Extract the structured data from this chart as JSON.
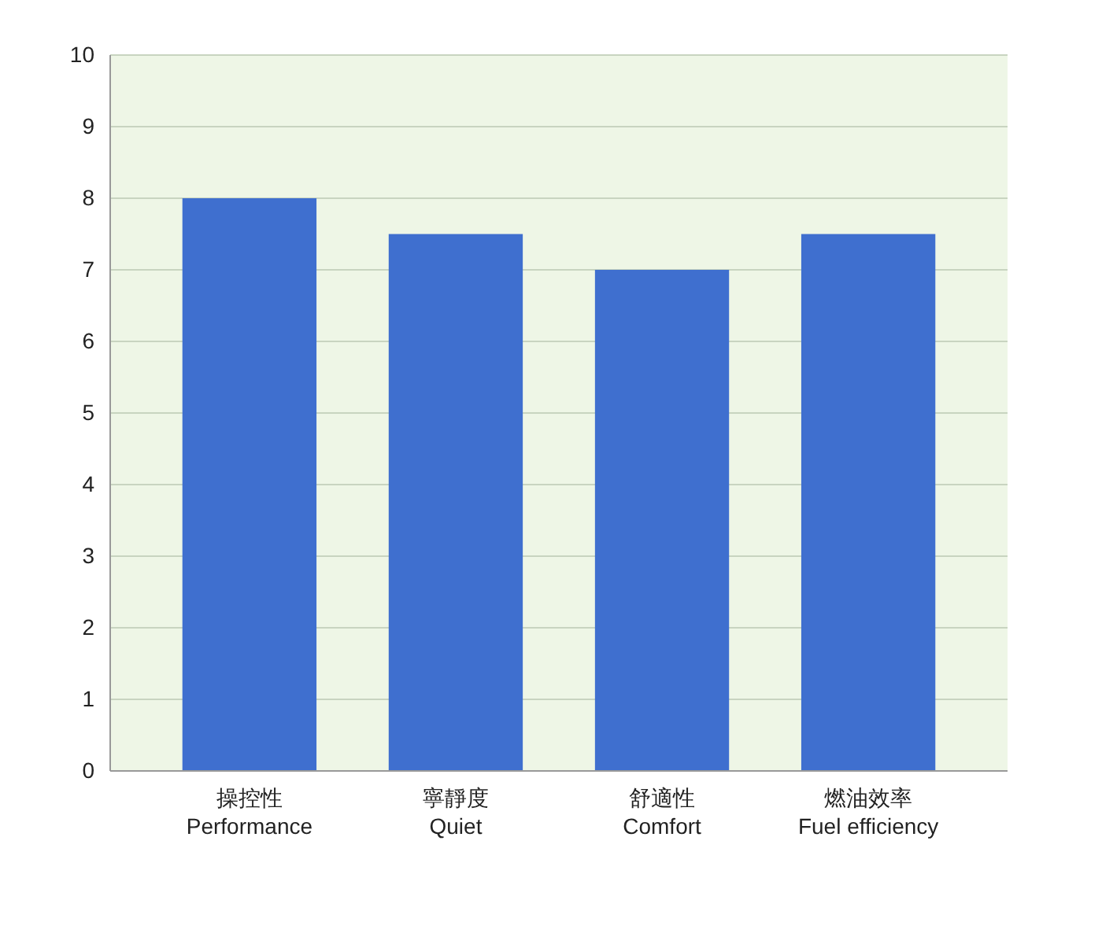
{
  "chart_data": {
    "type": "bar",
    "categories": [
      "操控性\nPerformance",
      "寧靜度\nQuiet",
      "舒適性\nComfort",
      "燃油效率\nFuel efficiency"
    ],
    "values": [
      8,
      7.5,
      7,
      7.5
    ],
    "color": "#3f6fcf",
    "ylim": [
      0,
      10
    ],
    "yticks": [
      0,
      1,
      2,
      3,
      4,
      5,
      6,
      7,
      8,
      9,
      10
    ],
    "grid": "y"
  }
}
